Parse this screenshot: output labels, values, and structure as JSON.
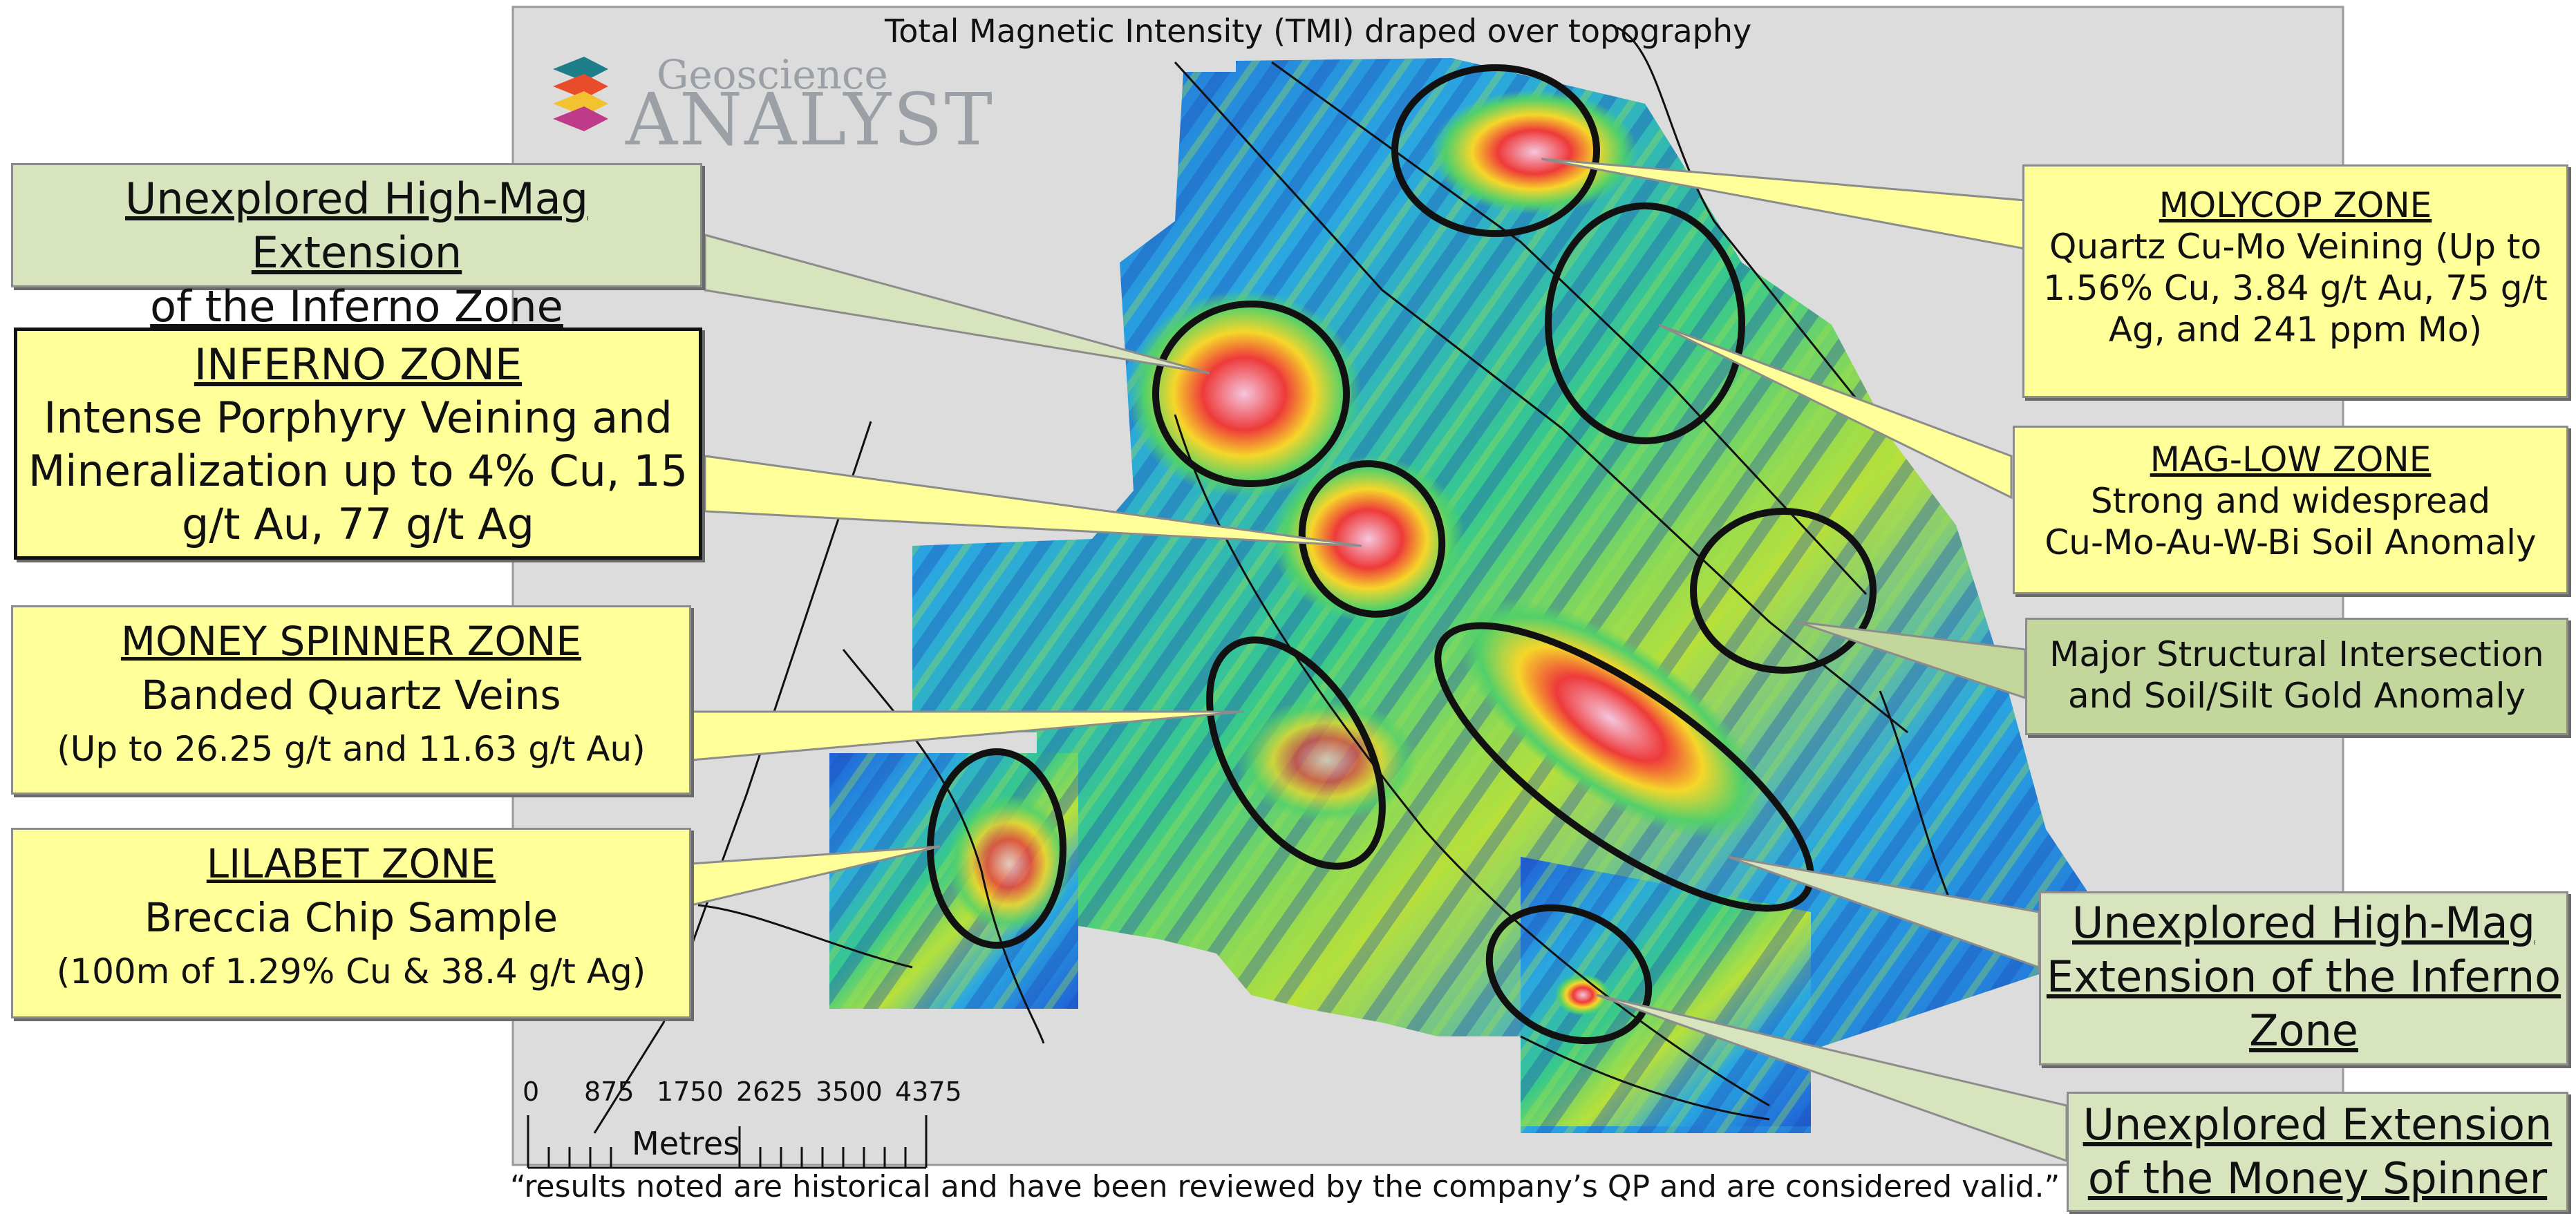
{
  "map_title": "Total Magnetic Intensity (TMI) draped over topography",
  "caption": "“results noted are historical and have been reviewed by the company’s QP and are considered valid.”",
  "logo": {
    "line1": "Geoscience",
    "line2": "ANALYST"
  },
  "scale_bar": {
    "ticks": [
      "0",
      "875",
      "1750",
      "2625",
      "3500",
      "4375"
    ],
    "unit_label": "Metres"
  },
  "colors": {
    "yellow_callout": "#ffff99",
    "green_callout": "#d7e4bd",
    "dark_green_callout": "#c3d69b",
    "anomaly_outline": "#111111"
  },
  "callouts": {
    "inferno_ext_top": {
      "title_line1": "Unexplored High-Mag Extension",
      "title_line2": "of the Inferno Zone"
    },
    "inferno": {
      "title": "INFERNO ZONE",
      "line1": "Intense Porphyry Veining and",
      "line2": "Mineralization up to 4% Cu, 15",
      "line3": "g/t Au, 77 g/t Ag"
    },
    "money_spinner": {
      "title": "MONEY SPINNER ZONE",
      "line1": "Banded Quartz Veins",
      "line2": "(Up to 26.25 g/t and 11.63 g/t Au)"
    },
    "lilabet": {
      "title": "LILABET ZONE",
      "line1": "Breccia Chip Sample",
      "line2": "(100m of 1.29% Cu & 38.4 g/t Ag)"
    },
    "molycop": {
      "title": "MOLYCOP ZONE",
      "line1": "Quartz Cu-Mo Veining (Up to",
      "line2": "1.56% Cu, 3.84 g/t Au, 75 g/t",
      "line3": "Ag, and 241 ppm Mo)"
    },
    "mag_low": {
      "title": "MAG-LOW ZONE",
      "line1": "Strong and widespread",
      "line2": "Cu-Mo-Au-W-Bi Soil Anomaly"
    },
    "structural": {
      "line1": "Major Structural Intersection",
      "line2": "and Soil/Silt Gold Anomaly"
    },
    "inferno_ext_bottom": {
      "line1": "Unexplored High-Mag",
      "line2": "Extension of the Inferno",
      "line3": "Zone"
    },
    "money_spinner_ext": {
      "line1": "Unexplored Extension",
      "line2": "of the Money Spinner"
    }
  }
}
